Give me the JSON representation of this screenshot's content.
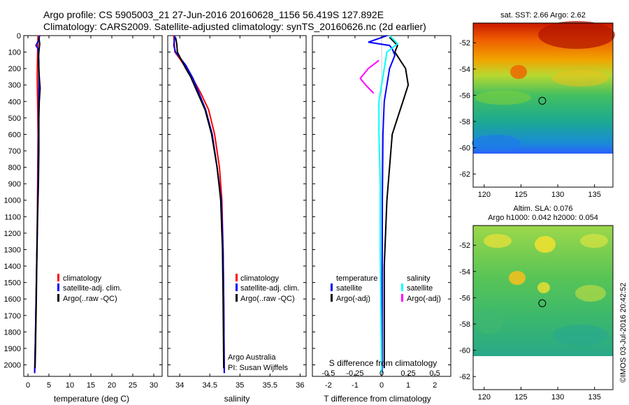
{
  "header": {
    "title_line1": "Argo profile: CS 5905003_21 27-Jun-2016 20160628_1156 56.419S 127.892E",
    "title_line2": "Climatology: CARS2009. Satellite-adjusted climatology: synTS_20160626.nc (2d earlier)"
  },
  "credit": "©IMOS 03-Jul-2016 20:42:52",
  "colors": {
    "climatology": "#ff0000",
    "satellite": "#0000ff",
    "argo": "#000000",
    "satellite_s": "#00ffff",
    "argo_s": "#ff00ff"
  },
  "chart_data": [
    {
      "id": "temperature",
      "type": "line",
      "xlabel": "temperature (deg C)",
      "ylabel": "",
      "xlim": [
        -1,
        32
      ],
      "ylim": [
        2070,
        0
      ],
      "xticks": [
        0,
        5,
        10,
        15,
        20,
        25,
        30
      ],
      "yticks": [
        0,
        100,
        200,
        300,
        400,
        500,
        600,
        700,
        800,
        900,
        1000,
        1100,
        1200,
        1300,
        1400,
        1500,
        1600,
        1700,
        1800,
        1900,
        2000
      ],
      "legend": [
        "climatology",
        "satellite-adj. clim.",
        "Argo(..raw -QC)"
      ],
      "series": [
        {
          "name": "climatology",
          "color": "#ff0000",
          "points": [
            [
              2.4,
              0
            ],
            [
              2.3,
              100
            ],
            [
              2.2,
              250
            ],
            [
              2.3,
              400
            ],
            [
              2.4,
              600
            ],
            [
              2.3,
              900
            ],
            [
              2.2,
              1200
            ],
            [
              2.0,
              1500
            ],
            [
              1.8,
              1800
            ],
            [
              1.6,
              2050
            ]
          ]
        },
        {
          "name": "satellite-adj. clim.",
          "color": "#0000ff",
          "points": [
            [
              2.8,
              0
            ],
            [
              2.5,
              30
            ],
            [
              1.9,
              60
            ],
            [
              2.4,
              80
            ],
            [
              2.6,
              150
            ],
            [
              2.6,
              300
            ],
            [
              2.5,
              600
            ],
            [
              2.4,
              900
            ],
            [
              2.2,
              1200
            ],
            [
              2.0,
              1500
            ],
            [
              1.8,
              1800
            ],
            [
              1.6,
              2050
            ]
          ]
        },
        {
          "name": "Argo(..raw -QC)",
          "color": "#000000",
          "points": [
            [
              2.6,
              10
            ],
            [
              2.8,
              50
            ],
            [
              2.6,
              100
            ],
            [
              2.5,
              150
            ],
            [
              2.7,
              250
            ],
            [
              2.9,
              320
            ],
            [
              2.7,
              400
            ],
            [
              2.6,
              500
            ],
            [
              2.6,
              700
            ],
            [
              2.5,
              900
            ],
            [
              2.3,
              1100
            ],
            [
              2.1,
              1400
            ],
            [
              2.0,
              1600
            ],
            [
              1.8,
              1900
            ],
            [
              1.7,
              2020
            ]
          ]
        }
      ]
    },
    {
      "id": "salinity",
      "type": "line",
      "xlabel": "salinity",
      "ylabel": "",
      "xlim": [
        33.8,
        36.1
      ],
      "ylim": [
        2070,
        0
      ],
      "xticks": [
        34,
        34.5,
        35,
        35.5,
        36
      ],
      "yticks": [
        0,
        100,
        200,
        300,
        400,
        500,
        600,
        700,
        800,
        900,
        1000,
        1100,
        1200,
        1300,
        1400,
        1500,
        1600,
        1700,
        1800,
        1900,
        2000
      ],
      "legend": [
        "climatology",
        "satellite-adj. clim.",
        "Argo(..raw -QC)"
      ],
      "annotation": [
        "Argo Australia",
        "PI: Susan Wijffels"
      ],
      "series": [
        {
          "name": "climatology",
          "color": "#ff0000",
          "points": [
            [
              33.9,
              0
            ],
            [
              33.92,
              100
            ],
            [
              34.02,
              150
            ],
            [
              34.2,
              250
            ],
            [
              34.35,
              350
            ],
            [
              34.48,
              450
            ],
            [
              34.58,
              600
            ],
            [
              34.66,
              800
            ],
            [
              34.7,
              1000
            ],
            [
              34.72,
              1300
            ],
            [
              34.73,
              1600
            ],
            [
              34.74,
              2050
            ]
          ]
        },
        {
          "name": "satellite-adj. clim.",
          "color": "#0000ff",
          "points": [
            [
              33.92,
              0
            ],
            [
              33.9,
              60
            ],
            [
              33.93,
              100
            ],
            [
              34.1,
              180
            ],
            [
              34.22,
              260
            ],
            [
              34.32,
              350
            ],
            [
              34.43,
              450
            ],
            [
              34.54,
              600
            ],
            [
              34.62,
              800
            ],
            [
              34.69,
              1000
            ],
            [
              34.72,
              1300
            ],
            [
              34.73,
              1600
            ],
            [
              34.74,
              2050
            ]
          ]
        },
        {
          "name": "Argo(..raw -QC)",
          "color": "#000000",
          "points": [
            [
              33.93,
              10
            ],
            [
              33.95,
              50
            ],
            [
              33.96,
              100
            ],
            [
              34.03,
              150
            ],
            [
              34.1,
              200
            ],
            [
              34.18,
              250
            ],
            [
              34.3,
              350
            ],
            [
              34.42,
              450
            ],
            [
              34.53,
              600
            ],
            [
              34.62,
              800
            ],
            [
              34.68,
              1000
            ],
            [
              34.71,
              1300
            ],
            [
              34.72,
              1600
            ],
            [
              34.73,
              2020
            ]
          ]
        }
      ]
    },
    {
      "id": "difference",
      "type": "line",
      "xlabel": "T difference from climatology",
      "xlabel_top": "S difference from climatology",
      "xlim": [
        -2.6,
        2.6
      ],
      "ylim": [
        2070,
        0
      ],
      "xticks": [
        -2,
        -1,
        0,
        1,
        2
      ],
      "xtick_labels": [
        "-2",
        "-1",
        "0",
        "1",
        "2"
      ],
      "xticks_s": [
        -2,
        -1,
        0,
        1,
        2
      ],
      "xtick_s_labels": [
        "-0.5",
        "-0.25",
        "0",
        "0.25",
        "0.5"
      ],
      "yticks": [
        0,
        100,
        200,
        300,
        400,
        500,
        600,
        700,
        800,
        900,
        1000,
        1100,
        1200,
        1300,
        1400,
        1500,
        1600,
        1700,
        1800,
        1900,
        2000
      ],
      "legend_headers": [
        "temperature",
        "salinity"
      ],
      "legend": [
        "satellite",
        "Argo(-adj)",
        "satellite",
        "Argo(-adj)"
      ],
      "series": [
        {
          "name": "temperature satellite",
          "color": "#0000ff",
          "points": [
            [
              0.2,
              0
            ],
            [
              -0.5,
              40
            ],
            [
              0.3,
              60
            ],
            [
              0.4,
              80
            ],
            [
              0.5,
              120
            ],
            [
              0.3,
              200
            ],
            [
              0.2,
              300
            ],
            [
              0.1,
              400
            ],
            [
              0.05,
              600
            ],
            [
              0.03,
              1000
            ],
            [
              0.02,
              1500
            ],
            [
              0.02,
              2050
            ]
          ]
        },
        {
          "name": "temperature Argo(-adj)",
          "color": "#000000",
          "points": [
            [
              0.3,
              10
            ],
            [
              0.6,
              60
            ],
            [
              0.5,
              100
            ],
            [
              0.7,
              150
            ],
            [
              0.9,
              200
            ],
            [
              1.0,
              300
            ],
            [
              0.8,
              400
            ],
            [
              0.6,
              500
            ],
            [
              0.4,
              600
            ],
            [
              0.3,
              800
            ],
            [
              0.2,
              1000
            ],
            [
              0.1,
              1400
            ],
            [
              0.1,
              1800
            ],
            [
              0.1,
              2020
            ]
          ]
        },
        {
          "name": "salinity satellite",
          "color": "#00ffff",
          "points": [
            [
              0.3,
              0
            ],
            [
              0.6,
              50
            ],
            [
              0.2,
              100
            ],
            [
              0.1,
              200
            ],
            [
              -0.1,
              400
            ],
            [
              -0.1,
              600
            ],
            [
              -0.05,
              900
            ],
            [
              -0.05,
              1300
            ],
            [
              -0.02,
              1700
            ],
            [
              0.0,
              2050
            ]
          ]
        },
        {
          "name": "salinity Argo(-adj)",
          "color": "#ff00ff",
          "points": [
            [
              -0.1,
              150
            ],
            [
              -0.5,
              200
            ],
            [
              -0.8,
              260
            ],
            [
              -0.6,
              300
            ],
            [
              -0.3,
              350
            ]
          ]
        }
      ]
    },
    {
      "id": "sst_map",
      "type": "heatmap",
      "title": "sat. SST: 2.66 Argo: 2.62",
      "xlim": [
        118.5,
        137.5
      ],
      "ylim": [
        -63,
        -50.5
      ],
      "xticks": [
        120,
        125,
        130,
        135
      ],
      "yticks": [
        -52,
        -54,
        -56,
        -58,
        -60,
        -62
      ],
      "data_ylim": [
        -60,
        -50.5
      ],
      "marker": [
        127.892,
        -56.419
      ]
    },
    {
      "id": "sla_map",
      "type": "heatmap",
      "title": "Altim. SLA: 0.076",
      "subtitle": "Argo h1000: 0.042 h2000: 0.054",
      "xlim": [
        118.5,
        137.5
      ],
      "ylim": [
        -63,
        -50.5
      ],
      "xticks": [
        120,
        125,
        130,
        135
      ],
      "yticks": [
        -52,
        -54,
        -56,
        -58,
        -60,
        -62
      ],
      "data_ylim": [
        -60,
        -50.5
      ],
      "marker": [
        127.892,
        -56.419
      ]
    }
  ]
}
